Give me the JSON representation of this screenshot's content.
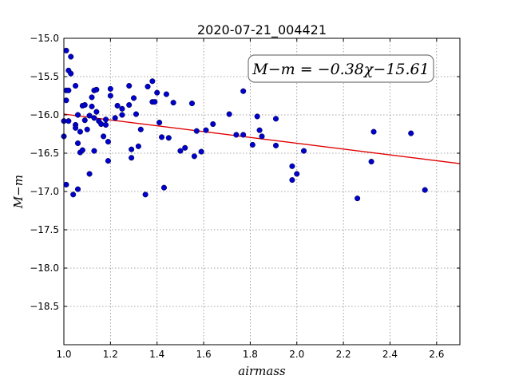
{
  "chart_data": {
    "type": "scatter",
    "title": "2020-07-21_004421",
    "xlabel": "airmass",
    "ylabel": "M−m",
    "xlim": [
      1.0,
      2.7
    ],
    "ylim": [
      -15.0,
      -19.0
    ],
    "y_inverted": true,
    "grid": true,
    "x_ticks": [
      1.0,
      1.2,
      1.4,
      1.6,
      1.8,
      2.0,
      2.2,
      2.4,
      2.6
    ],
    "x_tick_labels": [
      "1.0",
      "1.2",
      "1.4",
      "1.6",
      "1.8",
      "2.0",
      "2.2",
      "2.4",
      "2.6"
    ],
    "y_ticks": [
      -15.0,
      -15.5,
      -16.0,
      -16.5,
      -17.0,
      -17.5,
      -18.0,
      -18.5
    ],
    "y_tick_labels": [
      "−15.0",
      "−15.5",
      "−16.0",
      "−16.5",
      "−17.0",
      "−17.5",
      "−18.0",
      "−18.5"
    ],
    "annotation": "M−m = −0.38χ−15.61",
    "annotation_placement": "top-right",
    "fit": {
      "slope": -0.38,
      "intercept": -15.61,
      "x_range": [
        1.0,
        2.7
      ],
      "color": "#e00000"
    },
    "point_color": "#0000cc",
    "points": [
      [
        1.0,
        -16.08
      ],
      [
        1.0,
        -16.28
      ],
      [
        1.01,
        -15.68
      ],
      [
        1.01,
        -15.16
      ],
      [
        1.01,
        -15.81
      ],
      [
        1.01,
        -16.91
      ],
      [
        1.02,
        -15.42
      ],
      [
        1.02,
        -15.68
      ],
      [
        1.02,
        -16.08
      ],
      [
        1.03,
        -15.24
      ],
      [
        1.03,
        -15.46
      ],
      [
        1.04,
        -17.04
      ],
      [
        1.05,
        -15.62
      ],
      [
        1.05,
        -16.13
      ],
      [
        1.05,
        -16.17
      ],
      [
        1.06,
        -16.0
      ],
      [
        1.06,
        -16.37
      ],
      [
        1.06,
        -16.97
      ],
      [
        1.07,
        -16.49
      ],
      [
        1.07,
        -16.22
      ],
      [
        1.08,
        -16.46
      ],
      [
        1.08,
        -15.88
      ],
      [
        1.09,
        -16.07
      ],
      [
        1.09,
        -15.87
      ],
      [
        1.1,
        -16.19
      ],
      [
        1.11,
        -16.01
      ],
      [
        1.11,
        -16.77
      ],
      [
        1.12,
        -15.89
      ],
      [
        1.12,
        -15.77
      ],
      [
        1.13,
        -15.68
      ],
      [
        1.13,
        -16.04
      ],
      [
        1.13,
        -16.47
      ],
      [
        1.14,
        -15.96
      ],
      [
        1.14,
        -15.67
      ],
      [
        1.15,
        -16.08
      ],
      [
        1.16,
        -16.12
      ],
      [
        1.17,
        -16.28
      ],
      [
        1.18,
        -16.06
      ],
      [
        1.18,
        -16.13
      ],
      [
        1.19,
        -16.35
      ],
      [
        1.19,
        -16.6
      ],
      [
        1.2,
        -15.75
      ],
      [
        1.2,
        -15.66
      ],
      [
        1.22,
        -16.04
      ],
      [
        1.23,
        -15.88
      ],
      [
        1.25,
        -15.92
      ],
      [
        1.25,
        -16.0
      ],
      [
        1.28,
        -15.87
      ],
      [
        1.28,
        -15.62
      ],
      [
        1.29,
        -16.45
      ],
      [
        1.29,
        -16.56
      ],
      [
        1.3,
        -15.78
      ],
      [
        1.31,
        -15.99
      ],
      [
        1.32,
        -16.41
      ],
      [
        1.33,
        -16.19
      ],
      [
        1.35,
        -17.04
      ],
      [
        1.36,
        -15.63
      ],
      [
        1.38,
        -15.56
      ],
      [
        1.38,
        -15.83
      ],
      [
        1.39,
        -15.83
      ],
      [
        1.4,
        -15.71
      ],
      [
        1.41,
        -16.1
      ],
      [
        1.42,
        -16.29
      ],
      [
        1.43,
        -16.95
      ],
      [
        1.44,
        -15.73
      ],
      [
        1.45,
        -16.3
      ],
      [
        1.47,
        -15.84
      ],
      [
        1.5,
        -16.47
      ],
      [
        1.52,
        -16.43
      ],
      [
        1.55,
        -15.85
      ],
      [
        1.56,
        -16.54
      ],
      [
        1.57,
        -16.21
      ],
      [
        1.59,
        -16.48
      ],
      [
        1.61,
        -16.2
      ],
      [
        1.64,
        -16.12
      ],
      [
        1.71,
        -15.99
      ],
      [
        1.74,
        -16.26
      ],
      [
        1.77,
        -15.69
      ],
      [
        1.77,
        -16.26
      ],
      [
        1.81,
        -16.39
      ],
      [
        1.83,
        -16.02
      ],
      [
        1.84,
        -16.2
      ],
      [
        1.85,
        -16.28
      ],
      [
        1.91,
        -16.4
      ],
      [
        1.91,
        -16.05
      ],
      [
        1.98,
        -16.85
      ],
      [
        1.98,
        -16.67
      ],
      [
        2.0,
        -16.77
      ],
      [
        2.03,
        -16.47
      ],
      [
        2.26,
        -17.09
      ],
      [
        2.32,
        -16.61
      ],
      [
        2.33,
        -16.22
      ],
      [
        2.49,
        -16.24
      ],
      [
        2.55,
        -16.98
      ]
    ]
  }
}
